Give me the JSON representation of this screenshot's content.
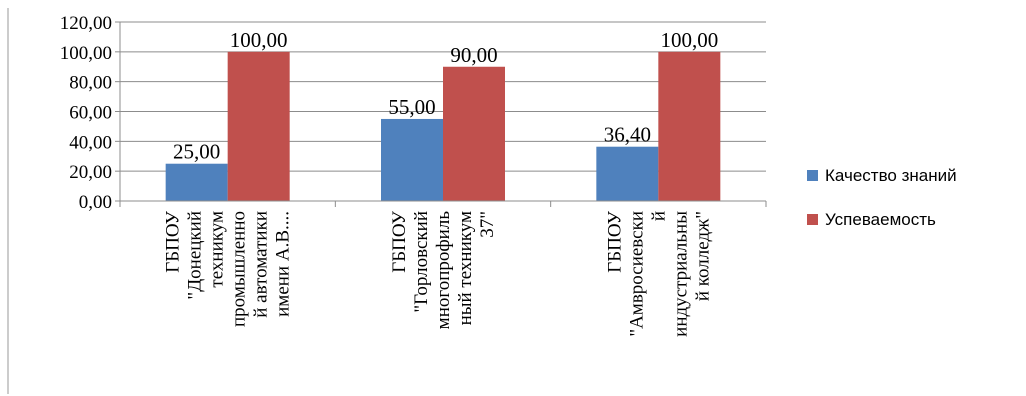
{
  "chart_data": {
    "type": "bar",
    "categories": [
      [
        "ГБПОУ",
        "\"Донецкий",
        "техникум",
        "промышленно",
        "й автоматики",
        "имени А.В...."
      ],
      [
        "ГБПОУ",
        "\"Горловский",
        "многопрофиль",
        "ный техникум",
        "37\""
      ],
      [
        "ГБПОУ",
        "\"Амвросиевски",
        "й",
        "индустриальны",
        "й колледж\""
      ]
    ],
    "series": [
      {
        "name": "Качество знаний",
        "color": "#4F81BD",
        "values": [
          25.0,
          55.0,
          36.4
        ],
        "labels": [
          "25,00",
          "55,00",
          "36,40"
        ]
      },
      {
        "name": "Успеваемость",
        "color": "#C0504D",
        "values": [
          100.0,
          90.0,
          100.0
        ],
        "labels": [
          "100,00",
          "90,00",
          "100,00"
        ]
      }
    ],
    "ylim": [
      0,
      120
    ],
    "yticks": [
      0,
      20,
      40,
      60,
      80,
      100,
      120
    ],
    "ytick_labels": [
      "0,00",
      "20,00",
      "40,00",
      "60,00",
      "80,00",
      "100,00",
      "120,00"
    ],
    "grid": true,
    "legend_position": "right",
    "title": "",
    "xlabel": "",
    "ylabel": ""
  }
}
